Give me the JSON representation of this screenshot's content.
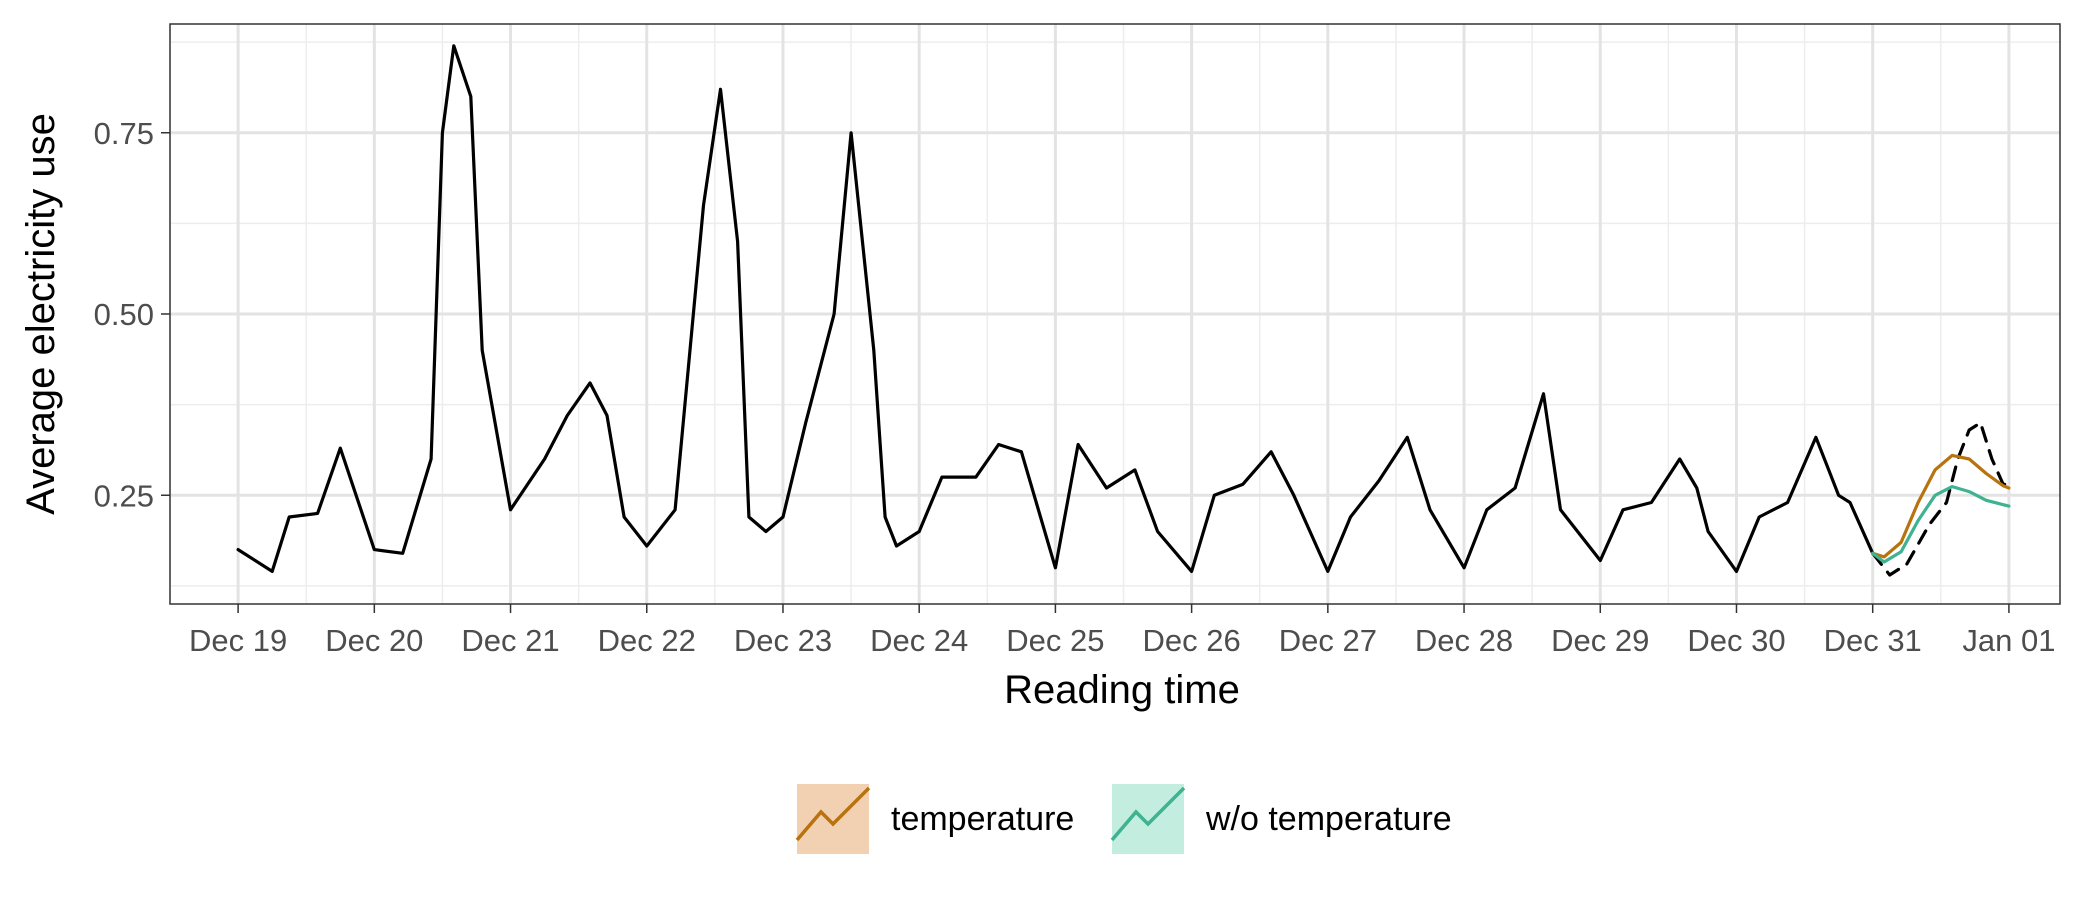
{
  "chart_data": {
    "type": "line",
    "xlabel": "Reading time",
    "ylabel": "Average electricity use",
    "x_ticks": [
      "Dec 19",
      "Dec 20",
      "Dec 21",
      "Dec 22",
      "Dec 23",
      "Dec 24",
      "Dec 25",
      "Dec 26",
      "Dec 27",
      "Dec 28",
      "Dec 29",
      "Dec 30",
      "Dec 31",
      "Jan 01"
    ],
    "y_ticks": [
      "0.25",
      "0.50",
      "0.75"
    ],
    "xlim": [
      "Dec 18 12:00",
      "Jan 01 09:00"
    ],
    "ylim": [
      0.1,
      0.9
    ],
    "grid": true,
    "legend_position": "bottom",
    "series": [
      {
        "style": "solid",
        "color": "#000000",
        "x": [
          "Dec 19 00:00",
          "Dec 19 06:00",
          "Dec 19 09:00",
          "Dec 19 14:00",
          "Dec 19 18:00",
          "Dec 20 00:00",
          "Dec 20 05:00",
          "Dec 20 10:00",
          "Dec 20 12:00",
          "Dec 20 14:00",
          "Dec 20 17:00",
          "Dec 20 19:00",
          "Dec 21 00:00",
          "Dec 21 06:00",
          "Dec 21 10:00",
          "Dec 21 14:00",
          "Dec 21 17:00",
          "Dec 21 20:00",
          "Dec 22 00:00",
          "Dec 22 05:00",
          "Dec 22 10:00",
          "Dec 22 13:00",
          "Dec 22 16:00",
          "Dec 22 18:00",
          "Dec 22 21:00",
          "Dec 23 00:00",
          "Dec 23 04:00",
          "Dec 23 09:00",
          "Dec 23 12:00",
          "Dec 23 16:00",
          "Dec 23 18:00",
          "Dec 23 20:00",
          "Dec 24 00:00",
          "Dec 24 04:00",
          "Dec 24 08:00",
          "Dec 24 10:00",
          "Dec 24 14:00",
          "Dec 24 18:00",
          "Dec 25 00:00",
          "Dec 25 04:00",
          "Dec 25 09:00",
          "Dec 25 14:00",
          "Dec 25 18:00",
          "Dec 26 00:00",
          "Dec 26 04:00",
          "Dec 26 09:00",
          "Dec 26 14:00",
          "Dec 26 18:00",
          "Dec 27 00:00",
          "Dec 27 04:00",
          "Dec 27 09:00",
          "Dec 27 14:00",
          "Dec 27 18:00",
          "Dec 28 00:00",
          "Dec 28 04:00",
          "Dec 28 09:00",
          "Dec 28 14:00",
          "Dec 28 17:00",
          "Dec 29 00:00",
          "Dec 29 04:00",
          "Dec 29 09:00",
          "Dec 29 14:00",
          "Dec 29 17:00",
          "Dec 29 19:00",
          "Dec 30 00:00",
          "Dec 30 04:00",
          "Dec 30 09:00",
          "Dec 30 14:00",
          "Dec 30 16:00",
          "Dec 30 18:00",
          "Dec 30 20:00",
          "Dec 31 00:00"
        ],
        "y": [
          0.175,
          0.145,
          0.22,
          0.225,
          0.315,
          0.175,
          0.17,
          0.3,
          0.75,
          0.87,
          0.8,
          0.45,
          0.23,
          0.3,
          0.36,
          0.405,
          0.36,
          0.22,
          0.18,
          0.23,
          0.65,
          0.81,
          0.6,
          0.22,
          0.2,
          0.22,
          0.35,
          0.5,
          0.75,
          0.45,
          0.22,
          0.18,
          0.2,
          0.275,
          0.275,
          0.275,
          0.32,
          0.31,
          0.15,
          0.32,
          0.26,
          0.285,
          0.2,
          0.145,
          0.25,
          0.265,
          0.31,
          0.25,
          0.145,
          0.22,
          0.27,
          0.33,
          0.23,
          0.15,
          0.23,
          0.26,
          0.39,
          0.23,
          0.16,
          0.23,
          0.24,
          0.3,
          0.26,
          0.2,
          0.145,
          0.22,
          0.24,
          0.33,
          0.29,
          0.25,
          0.24,
          0.17
        ]
      },
      {
        "style": "dashed",
        "color": "#000000",
        "x": [
          "Dec 31 00:00",
          "Dec 31 03:00",
          "Dec 31 06:00",
          "Dec 31 10:00",
          "Dec 31 13:00",
          "Dec 31 15:00",
          "Dec 31 17:00",
          "Dec 31 19:00",
          "Dec 31 21:00",
          "Dec 31 23:00",
          "Jan 01 00:00"
        ],
        "y": [
          0.17,
          0.14,
          0.155,
          0.21,
          0.24,
          0.3,
          0.34,
          0.35,
          0.3,
          0.265,
          0.265
        ]
      },
      {
        "name": "temperature",
        "style": "solid",
        "color": "#B8720E",
        "x": [
          "Dec 31 00:00",
          "Dec 31 02:00",
          "Dec 31 05:00",
          "Dec 31 08:00",
          "Dec 31 11:00",
          "Dec 31 14:00",
          "Dec 31 17:00",
          "Dec 31 20:00",
          "Dec 31 23:00",
          "Jan 01 00:00"
        ],
        "y": [
          0.17,
          0.165,
          0.185,
          0.24,
          0.285,
          0.305,
          0.3,
          0.28,
          0.263,
          0.26
        ]
      },
      {
        "name": "w/o temperature",
        "style": "solid",
        "color": "#3FB292",
        "x": [
          "Dec 31 00:00",
          "Dec 31 02:00",
          "Dec 31 05:00",
          "Dec 31 08:00",
          "Dec 31 11:00",
          "Dec 31 14:00",
          "Dec 31 17:00",
          "Dec 31 20:00",
          "Dec 31 23:00",
          "Jan 01 00:00"
        ],
        "y": [
          0.17,
          0.158,
          0.172,
          0.215,
          0.25,
          0.262,
          0.255,
          0.243,
          0.237,
          0.235
        ]
      }
    ],
    "legend": [
      {
        "label": "temperature",
        "color": "#B8720E",
        "fill": "#F2D1B3"
      },
      {
        "label": "w/o temperature",
        "color": "#3FB292",
        "fill": "#C2EDDF"
      }
    ]
  }
}
